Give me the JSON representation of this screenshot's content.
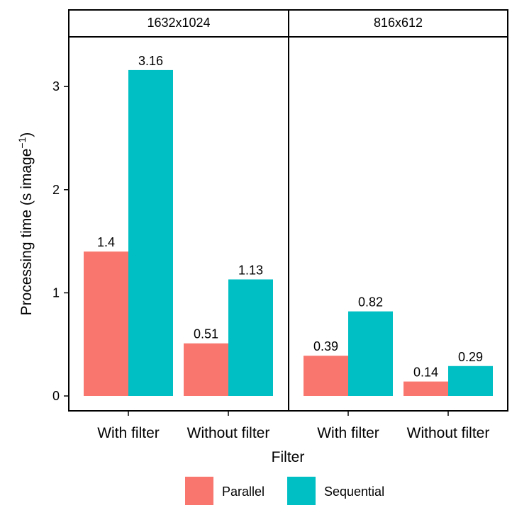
{
  "chart_data": {
    "type": "bar",
    "facets": [
      "1632x1024",
      "816x612"
    ],
    "categories": [
      "With filter",
      "Without filter"
    ],
    "series": [
      {
        "name": "Parallel",
        "color": "#F8766D",
        "values": [
          [
            1.4,
            0.51
          ],
          [
            0.39,
            0.14
          ]
        ]
      },
      {
        "name": "Sequential",
        "color": "#00BFC4",
        "values": [
          [
            3.16,
            1.13
          ],
          [
            0.82,
            0.29
          ]
        ]
      }
    ],
    "data_labels": [
      [
        "1.4",
        "0.51",
        "3.16",
        "1.13"
      ],
      [
        "0.39",
        "0.14",
        "0.82",
        "0.29"
      ]
    ],
    "xlabel": "Filter",
    "ylabel": "Processing time (s image",
    "ylabel_superscript": "−1",
    "ylabel_close": ")",
    "yticks": [
      0,
      1,
      2,
      3
    ],
    "ylim": [
      0,
      3.3
    ],
    "grid": false,
    "legend_position": "bottom"
  }
}
